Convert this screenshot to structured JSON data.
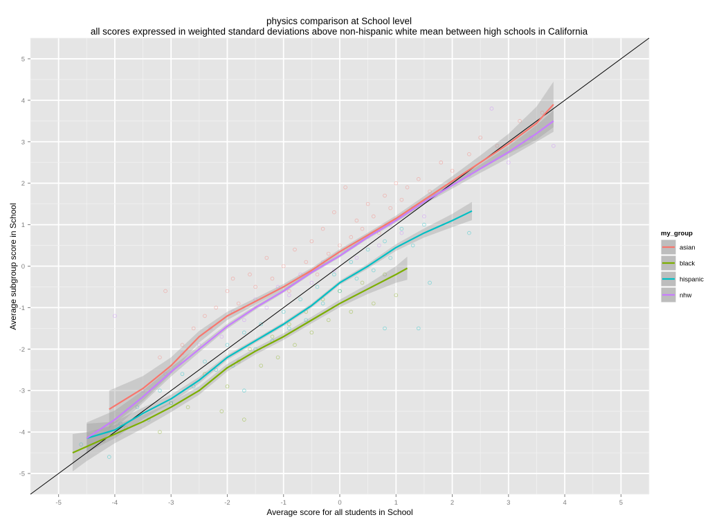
{
  "chart_data": {
    "type": "scatter",
    "title": "physics comparison at School level",
    "subtitle": "all scores expressed in weighted standard deviations above non-hispanic white mean between high schools in California",
    "xlabel": "Average score for all students in School",
    "ylabel": "Average subgroup score in School",
    "xlim": [
      -5.5,
      5.5
    ],
    "ylim": [
      -5.5,
      5.5
    ],
    "x_ticks": [
      -5,
      -4,
      -3,
      -2,
      -1,
      0,
      1,
      2,
      3,
      4,
      5
    ],
    "y_ticks": [
      -5,
      -4,
      -3,
      -2,
      -1,
      0,
      1,
      2,
      3,
      4,
      5
    ],
    "grid": true,
    "reference_line": {
      "slope": 1,
      "intercept": 0
    },
    "legend": {
      "title": "my_group",
      "position": "right",
      "entries": [
        "asian",
        "black",
        "hispanic",
        "nhw"
      ]
    },
    "series": [
      {
        "name": "asian",
        "color": "#F8766D",
        "smooth_x": [
          -4.1,
          -3.5,
          -3.0,
          -2.5,
          -2.0,
          -1.5,
          -1.0,
          -0.5,
          0.0,
          0.5,
          1.0,
          1.5,
          2.0,
          2.5,
          3.0,
          3.5,
          3.8
        ],
        "smooth_y": [
          -3.45,
          -2.95,
          -2.4,
          -1.7,
          -1.2,
          -0.85,
          -0.5,
          -0.1,
          0.35,
          0.75,
          1.15,
          1.6,
          2.05,
          2.5,
          2.95,
          3.45,
          3.9
        ],
        "ci_halfwidth": [
          0.45,
          0.3,
          0.2,
          0.14,
          0.1,
          0.08,
          0.07,
          0.06,
          0.06,
          0.06,
          0.07,
          0.09,
          0.12,
          0.17,
          0.24,
          0.4,
          0.55
        ],
        "points": [
          [
            -3.2,
            -2.2
          ],
          [
            -2.8,
            -1.9
          ],
          [
            -2.6,
            -1.5
          ],
          [
            -2.4,
            -1.2
          ],
          [
            -2.2,
            -1.0
          ],
          [
            -2.0,
            -0.6
          ],
          [
            -1.8,
            -0.9
          ],
          [
            -1.6,
            -0.2
          ],
          [
            -1.5,
            -0.5
          ],
          [
            -1.3,
            0.2
          ],
          [
            -1.2,
            -0.3
          ],
          [
            -1.0,
            0.0
          ],
          [
            -0.9,
            -0.6
          ],
          [
            -0.8,
            0.4
          ],
          [
            -0.6,
            0.1
          ],
          [
            -0.5,
            0.6
          ],
          [
            -0.4,
            -0.2
          ],
          [
            -0.3,
            0.9
          ],
          [
            -0.2,
            0.3
          ],
          [
            -0.1,
            1.3
          ],
          [
            0.0,
            0.5
          ],
          [
            0.1,
            1.9
          ],
          [
            0.2,
            0.7
          ],
          [
            0.3,
            1.1
          ],
          [
            0.4,
            0.9
          ],
          [
            0.5,
            1.5
          ],
          [
            0.6,
            1.2
          ],
          [
            0.7,
            0.8
          ],
          [
            0.8,
            1.7
          ],
          [
            0.9,
            1.4
          ],
          [
            1.0,
            2.0
          ],
          [
            1.1,
            1.6
          ],
          [
            1.2,
            1.9
          ],
          [
            1.4,
            2.1
          ],
          [
            1.6,
            1.8
          ],
          [
            1.8,
            2.5
          ],
          [
            2.0,
            2.3
          ],
          [
            2.3,
            2.7
          ],
          [
            2.5,
            3.1
          ],
          [
            2.8,
            2.9
          ],
          [
            3.2,
            3.5
          ],
          [
            3.6,
            3.7
          ],
          [
            -3.1,
            -0.6
          ],
          [
            -1.9,
            -0.3
          ]
        ]
      },
      {
        "name": "black",
        "color": "#7CAE00",
        "smooth_x": [
          -4.75,
          -4.5,
          -4.0,
          -3.5,
          -3.0,
          -2.5,
          -2.0,
          -1.5,
          -1.0,
          -0.5,
          0.0,
          0.5,
          1.0,
          1.2
        ],
        "smooth_y": [
          -4.5,
          -4.35,
          -4.05,
          -3.75,
          -3.4,
          -3.0,
          -2.45,
          -2.05,
          -1.7,
          -1.3,
          -0.9,
          -0.55,
          -0.2,
          -0.05
        ],
        "ci_halfwidth": [
          0.45,
          0.35,
          0.22,
          0.16,
          0.12,
          0.1,
          0.09,
          0.08,
          0.08,
          0.08,
          0.09,
          0.12,
          0.2,
          0.28
        ],
        "points": [
          [
            -4.2,
            -4.2
          ],
          [
            -3.8,
            -3.9
          ],
          [
            -3.2,
            -4.0
          ],
          [
            -3.0,
            -3.3
          ],
          [
            -2.7,
            -3.4
          ],
          [
            -2.4,
            -2.6
          ],
          [
            -2.1,
            -3.5
          ],
          [
            -2.0,
            -2.9
          ],
          [
            -1.8,
            -2.3
          ],
          [
            -1.7,
            -3.7
          ],
          [
            -1.6,
            -2.0
          ],
          [
            -1.4,
            -2.4
          ],
          [
            -1.2,
            -1.7
          ],
          [
            -1.1,
            -2.2
          ],
          [
            -0.9,
            -1.4
          ],
          [
            -0.8,
            -1.9
          ],
          [
            -0.6,
            -1.1
          ],
          [
            -0.5,
            -1.6
          ],
          [
            -0.3,
            -0.8
          ],
          [
            -0.2,
            -1.3
          ],
          [
            0.0,
            -0.6
          ],
          [
            0.2,
            -1.1
          ],
          [
            0.4,
            -0.4
          ],
          [
            0.6,
            -0.9
          ],
          [
            0.8,
            -0.2
          ],
          [
            1.0,
            -0.7
          ]
        ]
      },
      {
        "name": "hispanic",
        "color": "#00BFC4",
        "smooth_x": [
          -4.5,
          -4.0,
          -3.5,
          -3.0,
          -2.5,
          -2.0,
          -1.5,
          -1.0,
          -0.5,
          0.0,
          0.5,
          1.0,
          1.5,
          2.0,
          2.35
        ],
        "smooth_y": [
          -4.15,
          -3.95,
          -3.55,
          -3.2,
          -2.75,
          -2.2,
          -1.8,
          -1.4,
          -0.95,
          -0.4,
          0.0,
          0.45,
          0.8,
          1.1,
          1.33
        ],
        "ci_halfwidth": [
          0.35,
          0.2,
          0.14,
          0.1,
          0.08,
          0.06,
          0.05,
          0.05,
          0.05,
          0.05,
          0.06,
          0.08,
          0.11,
          0.16,
          0.22
        ],
        "points": [
          [
            -4.6,
            -4.3
          ],
          [
            -4.1,
            -4.6
          ],
          [
            -3.9,
            -3.8
          ],
          [
            -3.6,
            -3.4
          ],
          [
            -3.4,
            -3.7
          ],
          [
            -3.2,
            -3.0
          ],
          [
            -3.0,
            -3.3
          ],
          [
            -2.8,
            -2.6
          ],
          [
            -2.6,
            -2.9
          ],
          [
            -2.4,
            -2.3
          ],
          [
            -2.2,
            -2.5
          ],
          [
            -2.0,
            -1.9
          ],
          [
            -1.9,
            -2.4
          ],
          [
            -1.7,
            -1.6
          ],
          [
            -1.5,
            -2.0
          ],
          [
            -1.4,
            -1.4
          ],
          [
            -1.2,
            -1.8
          ],
          [
            -1.0,
            -1.1
          ],
          [
            -0.9,
            -1.5
          ],
          [
            -0.7,
            -0.8
          ],
          [
            -0.6,
            -1.3
          ],
          [
            -0.4,
            -0.5
          ],
          [
            -0.3,
            -0.9
          ],
          [
            -0.1,
            -0.2
          ],
          [
            0.0,
            -0.6
          ],
          [
            0.2,
            0.1
          ],
          [
            0.3,
            -0.3
          ],
          [
            0.5,
            0.4
          ],
          [
            0.6,
            -0.1
          ],
          [
            0.8,
            0.6
          ],
          [
            0.9,
            0.2
          ],
          [
            1.1,
            0.9
          ],
          [
            1.3,
            0.5
          ],
          [
            1.5,
            1.0
          ],
          [
            0.8,
            -1.5
          ],
          [
            1.4,
            -1.5
          ],
          [
            1.6,
            -0.4
          ],
          [
            2.3,
            0.8
          ],
          [
            -1.7,
            -3.0
          ]
        ]
      },
      {
        "name": "nhw",
        "color": "#C77CFF",
        "smooth_x": [
          -4.5,
          -4.0,
          -3.5,
          -3.0,
          -2.5,
          -2.0,
          -1.5,
          -1.0,
          -0.5,
          0.0,
          0.5,
          1.0,
          1.5,
          2.0,
          2.5,
          3.0,
          3.5,
          3.8
        ],
        "smooth_y": [
          -4.15,
          -3.7,
          -3.15,
          -2.55,
          -2.0,
          -1.45,
          -1.0,
          -0.6,
          -0.15,
          0.25,
          0.7,
          1.1,
          1.55,
          1.95,
          2.35,
          2.75,
          3.2,
          3.5
        ],
        "ci_halfwidth": [
          0.38,
          0.22,
          0.15,
          0.11,
          0.08,
          0.06,
          0.05,
          0.04,
          0.04,
          0.04,
          0.04,
          0.05,
          0.06,
          0.08,
          0.1,
          0.14,
          0.2,
          0.26
        ],
        "points": [
          [
            -4.0,
            -1.2
          ],
          [
            -3.5,
            -3.0
          ],
          [
            -3.1,
            -2.6
          ],
          [
            -2.8,
            -2.1
          ],
          [
            -2.5,
            -1.9
          ],
          [
            -2.3,
            -1.5
          ],
          [
            -2.1,
            -1.7
          ],
          [
            -1.9,
            -1.1
          ],
          [
            -1.7,
            -1.3
          ],
          [
            -1.5,
            -0.8
          ],
          [
            -1.3,
            -1.0
          ],
          [
            -1.1,
            -0.5
          ],
          [
            -0.9,
            -0.7
          ],
          [
            -0.7,
            -0.2
          ],
          [
            -0.5,
            -0.4
          ],
          [
            -0.3,
            0.1
          ],
          [
            -0.1,
            -0.1
          ],
          [
            0.1,
            0.4
          ],
          [
            0.3,
            0.2
          ],
          [
            0.5,
            0.7
          ],
          [
            0.7,
            0.5
          ],
          [
            0.9,
            1.0
          ],
          [
            1.1,
            0.8
          ],
          [
            1.3,
            1.4
          ],
          [
            1.5,
            1.2
          ],
          [
            1.7,
            1.7
          ],
          [
            2.0,
            2.0
          ],
          [
            2.3,
            2.2
          ],
          [
            2.7,
            3.8
          ],
          [
            3.0,
            2.5
          ],
          [
            3.4,
            3.1
          ],
          [
            3.8,
            2.9
          ]
        ]
      }
    ]
  }
}
